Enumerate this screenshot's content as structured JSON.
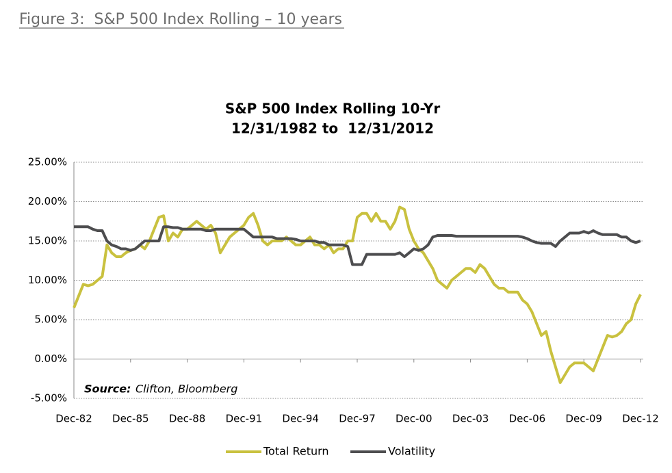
{
  "chart_data": {
    "type": "line",
    "heading": "Figure 3:  S&P 500 Index Rolling – 10 years",
    "title": "S&P 500 Index Rolling 10-Yr",
    "subtitle": "12/31/1982 to  12/31/2012",
    "source_label": "Source:",
    "source": "Clifton, Bloomberg",
    "categories": [
      "Dec-82",
      null,
      null,
      null,
      null,
      null,
      null,
      null,
      null,
      null,
      null,
      null,
      "Dec-85",
      null,
      null,
      null,
      null,
      null,
      null,
      null,
      null,
      null,
      null,
      null,
      "Dec-88",
      null,
      null,
      null,
      null,
      null,
      null,
      null,
      null,
      null,
      null,
      null,
      "Dec-91",
      null,
      null,
      null,
      null,
      null,
      null,
      null,
      null,
      null,
      null,
      null,
      "Dec-94",
      null,
      null,
      null,
      null,
      null,
      null,
      null,
      null,
      null,
      null,
      null,
      "Dec-97",
      null,
      null,
      null,
      null,
      null,
      null,
      null,
      null,
      null,
      null,
      null,
      "Dec-00",
      null,
      null,
      null,
      null,
      null,
      null,
      null,
      null,
      null,
      null,
      null,
      "Dec-03",
      null,
      null,
      null,
      null,
      null,
      null,
      null,
      null,
      null,
      null,
      null,
      "Dec-06",
      null,
      null,
      null,
      null,
      null,
      null,
      null,
      null,
      null,
      null,
      null,
      "Dec-09",
      null,
      null,
      null,
      null,
      null,
      null,
      null,
      null,
      null,
      null,
      null,
      "Dec-12"
    ],
    "series": [
      {
        "name": "Total Return",
        "color": "#c9c13f",
        "values": [
          6.5,
          8,
          9.5,
          9.3,
          9.5,
          10,
          10.5,
          14.5,
          13.5,
          13,
          13,
          13.5,
          13.8,
          14,
          14.5,
          14,
          15,
          16.5,
          18,
          18.2,
          15,
          16,
          15.5,
          16.5,
          16.5,
          17,
          17.5,
          17,
          16.5,
          17,
          16,
          13.5,
          14.5,
          15.5,
          16,
          16.5,
          17,
          18,
          18.5,
          17,
          15,
          14.5,
          15,
          15,
          15,
          15.5,
          15,
          14.5,
          14.5,
          15,
          15.5,
          14.5,
          14.5,
          14,
          14.5,
          13.5,
          14,
          14,
          15,
          15,
          18,
          18.5,
          18.5,
          17.5,
          18.5,
          17.5,
          17.5,
          16.5,
          17.5,
          19.3,
          19,
          16.5,
          15,
          14,
          13.5,
          12.5,
          11.5,
          10,
          9.5,
          9,
          10,
          10.5,
          11,
          11.5,
          11.5,
          11,
          12,
          11.5,
          10.5,
          9.5,
          9,
          9,
          8.5,
          8.5,
          8.5,
          7.5,
          7,
          6,
          4.5,
          3,
          3.5,
          1,
          -1,
          -3,
          -2,
          -1,
          -0.5,
          -0.5,
          -0.5,
          -1,
          -1.5,
          0,
          1.5,
          3,
          2.8,
          3,
          3.5,
          4.5,
          5,
          7,
          8.2
        ]
      },
      {
        "name": "Volatility",
        "color": "#4d4d4f",
        "values": [
          16.8,
          16.8,
          16.8,
          16.8,
          16.5,
          16.3,
          16.3,
          15,
          14.5,
          14.3,
          14,
          14,
          13.8,
          14,
          14.5,
          15,
          15,
          15,
          15,
          16.8,
          16.8,
          16.7,
          16.7,
          16.5,
          16.5,
          16.5,
          16.5,
          16.5,
          16.3,
          16.3,
          16.5,
          16.5,
          16.5,
          16.5,
          16.5,
          16.5,
          16.5,
          16,
          15.5,
          15.5,
          15.5,
          15.5,
          15.5,
          15.3,
          15.3,
          15.3,
          15.3,
          15.2,
          15,
          15,
          15,
          15,
          14.8,
          14.8,
          14.5,
          14.5,
          14.5,
          14.5,
          14.3,
          12,
          12,
          12,
          13.3,
          13.3,
          13.3,
          13.3,
          13.3,
          13.3,
          13.3,
          13.5,
          13,
          13.5,
          14,
          13.8,
          14,
          14.5,
          15.5,
          15.7,
          15.7,
          15.7,
          15.7,
          15.6,
          15.6,
          15.6,
          15.6,
          15.6,
          15.6,
          15.6,
          15.6,
          15.6,
          15.6,
          15.6,
          15.6,
          15.6,
          15.6,
          15.5,
          15.3,
          15,
          14.8,
          14.7,
          14.7,
          14.7,
          14.3,
          15,
          15.5,
          16,
          16,
          16,
          16.2,
          16,
          16.3,
          16,
          15.8,
          15.8,
          15.8,
          15.8,
          15.5,
          15.5,
          15,
          14.8,
          15
        ]
      }
    ],
    "ylim": [
      -5,
      25
    ],
    "yticks": [
      {
        "value": -5,
        "label": "-5.00%"
      },
      {
        "value": 0,
        "label": "0.00%"
      },
      {
        "value": 5,
        "label": "5.00%"
      },
      {
        "value": 10,
        "label": "10.00%"
      },
      {
        "value": 15,
        "label": "15.00%"
      },
      {
        "value": 20,
        "label": "20.00%"
      },
      {
        "value": 25,
        "label": "25.00%"
      }
    ],
    "grid": true,
    "legend": "bottom"
  }
}
